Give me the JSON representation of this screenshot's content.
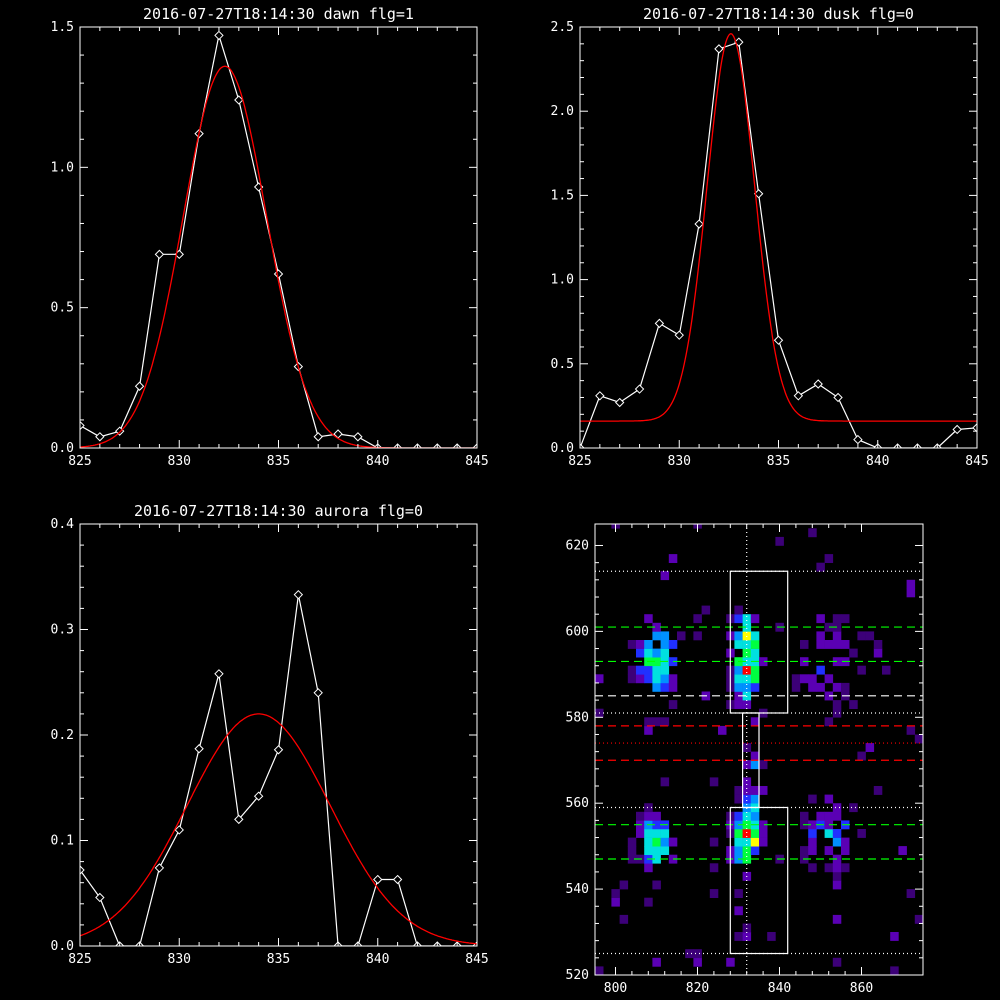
{
  "chart_data": [
    {
      "type": "line",
      "title": "2016-07-27T18:14:30 dawn flg=1",
      "xlim": [
        825,
        845
      ],
      "ylim": [
        0,
        1.5
      ],
      "xticks": [
        825,
        830,
        835,
        840,
        845
      ],
      "yticks": [
        0.0,
        0.5,
        1.0,
        1.5
      ],
      "ytick_labels": [
        "0.0",
        "0.5",
        "1.0",
        "1.5"
      ],
      "series": [
        {
          "x": [
            825,
            826,
            827,
            828,
            829,
            830,
            831,
            832,
            833,
            834,
            835,
            836,
            837,
            838,
            839,
            840,
            841,
            842,
            843,
            844,
            845
          ],
          "y": [
            0.08,
            0.04,
            0.06,
            0.22,
            0.69,
            0.69,
            1.12,
            1.47,
            1.24,
            0.93,
            0.62,
            0.29,
            0.04,
            0.05,
            0.04,
            0.0,
            0.0,
            0.0,
            0.0,
            0.0,
            0.0
          ],
          "color": "#ffffff",
          "markers": true
        }
      ],
      "fit": {
        "model": "gaussian",
        "amplitude": 1.36,
        "center": 832.3,
        "sigma": 2.1,
        "offset": 0.0,
        "color": "#ff0000"
      }
    },
    {
      "type": "line",
      "title": "2016-07-27T18:14:30 dusk flg=0",
      "xlim": [
        825,
        845
      ],
      "ylim": [
        0,
        2.5
      ],
      "xticks": [
        825,
        830,
        835,
        840,
        845
      ],
      "yticks": [
        0.0,
        0.5,
        1.0,
        1.5,
        2.0,
        2.5
      ],
      "ytick_labels": [
        "0.0",
        "0.5",
        "1.0",
        "1.5",
        "2.0",
        "2.5"
      ],
      "series": [
        {
          "x": [
            825,
            826,
            827,
            828,
            829,
            830,
            831,
            832,
            833,
            834,
            835,
            836,
            837,
            838,
            839,
            840,
            841,
            842,
            843,
            844,
            845
          ],
          "y": [
            0.0,
            0.31,
            0.27,
            0.35,
            0.74,
            0.67,
            1.33,
            2.37,
            2.41,
            1.51,
            0.64,
            0.31,
            0.38,
            0.3,
            0.05,
            0.0,
            0.0,
            0.0,
            0.0,
            0.11,
            0.12
          ],
          "color": "#ffffff",
          "markers": true
        }
      ],
      "fit": {
        "model": "gaussian",
        "amplitude": 2.3,
        "center": 832.6,
        "sigma": 1.2,
        "offset": 0.16,
        "color": "#ff0000"
      }
    },
    {
      "type": "line",
      "title": "2016-07-27T18:14:30 aurora flg=0",
      "xlim": [
        825,
        845
      ],
      "ylim": [
        0,
        0.4
      ],
      "xticks": [
        825,
        830,
        835,
        840,
        845
      ],
      "yticks": [
        0.0,
        0.1,
        0.2,
        0.3,
        0.4
      ],
      "ytick_labels": [
        "0.0",
        "0.1",
        "0.2",
        "0.3",
        "0.4"
      ],
      "series": [
        {
          "x": [
            825,
            826,
            827,
            828,
            829,
            830,
            831,
            832,
            833,
            834,
            835,
            836,
            837,
            838,
            839,
            840,
            841,
            842,
            843,
            844,
            845
          ],
          "y": [
            0.072,
            0.046,
            0.0,
            0.0,
            0.074,
            0.11,
            0.187,
            0.258,
            0.12,
            0.142,
            0.186,
            0.333,
            0.24,
            0.0,
            0.0,
            0.063,
            0.063,
            0.0,
            0.0,
            0.0,
            0.0
          ],
          "color": "#ffffff",
          "markers": true
        }
      ],
      "fit": {
        "model": "gaussian",
        "amplitude": 0.22,
        "center": 834.0,
        "sigma": 3.6,
        "offset": 0.0,
        "color": "#ff0000"
      }
    },
    {
      "type": "heatmap",
      "title": "",
      "xlim": [
        795,
        875
      ],
      "ylim": [
        520,
        625
      ],
      "xticks": [
        800,
        820,
        840,
        860
      ],
      "yticks": [
        520,
        540,
        560,
        580,
        600,
        620
      ],
      "cell_size": [
        2,
        2
      ],
      "colormap": [
        "#3c0078",
        "#5a00b4",
        "#2030ff",
        "#0090ff",
        "#00e0e0",
        "#00ff40",
        "#ffff00",
        "#ff0000"
      ],
      "clusters": [
        {
          "x": 832,
          "y": 594,
          "sx": 2.2,
          "sy": 7,
          "peak": 1.0
        },
        {
          "x": 832,
          "y": 552,
          "sx": 2.2,
          "sy": 5,
          "peak": 1.0
        },
        {
          "x": 810,
          "y": 593,
          "sx": 3,
          "sy": 7,
          "peak": 0.75
        },
        {
          "x": 810,
          "y": 551,
          "sx": 3,
          "sy": 4,
          "peak": 0.75
        },
        {
          "x": 852,
          "y": 553,
          "sx": 4,
          "sy": 5,
          "peak": 0.45
        },
        {
          "x": 852,
          "y": 593,
          "sx": 5,
          "sy": 8,
          "peak": 0.3
        },
        {
          "x": 834,
          "y": 570,
          "sx": 1.5,
          "sy": 10,
          "peak": 0.4
        }
      ],
      "background_density": 0.035,
      "boxes": [
        {
          "x0": 828,
          "x1": 842,
          "y0": 581,
          "y1": 614
        },
        {
          "x0": 828,
          "x1": 842,
          "y0": 525,
          "y1": 559
        },
        {
          "x0": 831,
          "x1": 835,
          "y0": 559,
          "y1": 581
        }
      ],
      "hlines": [
        {
          "y": 614,
          "color": "#ffffff",
          "style": "dotted"
        },
        {
          "y": 601,
          "color": "#00ff00",
          "style": "dashed"
        },
        {
          "y": 593,
          "color": "#00ff00",
          "style": "dashed"
        },
        {
          "y": 585,
          "color": "#ffffff",
          "style": "dashed"
        },
        {
          "y": 581,
          "color": "#ffffff",
          "style": "dotted"
        },
        {
          "y": 578,
          "color": "#ff0000",
          "style": "dashed"
        },
        {
          "y": 574,
          "color": "#ff0000",
          "style": "dotted"
        },
        {
          "y": 570,
          "color": "#ff0000",
          "style": "dashed"
        },
        {
          "y": 559,
          "color": "#ffffff",
          "style": "dotted"
        },
        {
          "y": 555,
          "color": "#00ff00",
          "style": "dashed"
        },
        {
          "y": 547,
          "color": "#00ff00",
          "style": "dashed"
        },
        {
          "y": 525,
          "color": "#ffffff",
          "style": "dotted"
        }
      ],
      "vlines": [
        {
          "x": 832,
          "color": "#ffffff",
          "style": "dotted"
        }
      ]
    }
  ]
}
